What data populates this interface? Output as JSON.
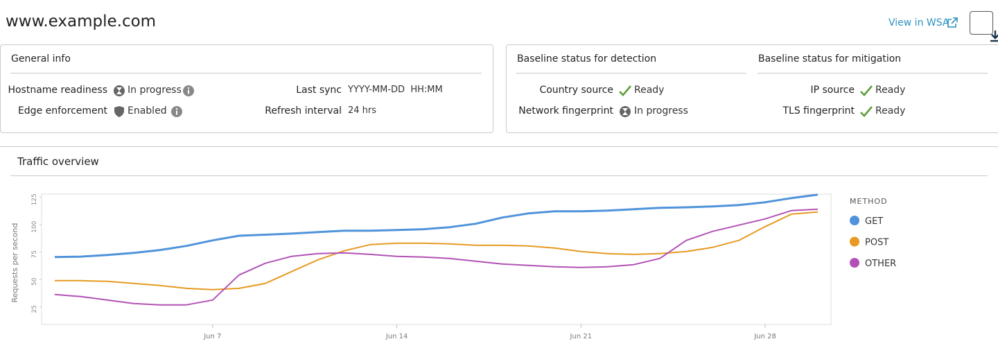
{
  "header": {
    "title": "www.example.com",
    "link": "View in WSA"
  },
  "general_info": {
    "title": "General info",
    "items": [
      {
        "label": "Hostname readiness",
        "status": "In progress"
      },
      {
        "label": "Edge enforcement",
        "status": "Enabled"
      },
      {
        "label": "Last sync",
        "status": "YYYY-MM-DD  HH:MM"
      },
      {
        "label": "Refresh interval",
        "status": "24 hrs"
      }
    ]
  },
  "detection": {
    "title": "Baseline status for detection",
    "items": [
      {
        "label": "Country source",
        "status": "Ready"
      },
      {
        "label": "Network fingerprint",
        "status": "In progress"
      }
    ]
  },
  "mitigation": {
    "title": "Baseline status for mitigation",
    "items": [
      {
        "label": "IP source",
        "status": "Ready"
      },
      {
        "label": "TLS fingerprint",
        "status": "Ready"
      }
    ]
  },
  "chart_data": {
    "type": "line",
    "title": "Traffic overview",
    "y_label": "Requests per second",
    "legend_title": "METHOD",
    "legend_position": "right",
    "x": [
      1,
      2,
      3,
      4,
      5,
      6,
      7,
      8,
      9,
      10,
      11,
      12,
      13,
      14,
      15,
      16,
      17,
      18,
      19,
      20,
      21,
      22,
      23,
      24,
      25,
      26,
      27,
      28,
      29,
      30
    ],
    "xlim": [
      0.5,
      30.5
    ],
    "xticks": [
      {
        "value": 7,
        "label": "Jun 7"
      },
      {
        "value": 14,
        "label": "Jun 14"
      },
      {
        "value": 21,
        "label": "Jun 21"
      },
      {
        "value": 28,
        "label": "Jun 28"
      }
    ],
    "ylim": [
      9,
      128
    ],
    "yticks": [
      25,
      50,
      75,
      100,
      125
    ],
    "series": [
      {
        "name": "GET",
        "color": "#4f93da",
        "values": [
          70.5,
          71,
          72.5,
          74.4,
          77,
          80.7,
          85.8,
          90,
          91,
          92,
          93.4,
          94.6,
          94.6,
          95.3,
          96,
          97.8,
          101,
          106.6,
          110.4,
          112.3,
          112.3,
          113,
          114.2,
          115.5,
          116,
          116.8,
          118,
          120.6,
          124.4,
          127.5
        ]
      },
      {
        "name": "POST",
        "color": "#e69a22",
        "values": [
          49,
          49,
          48.4,
          46.5,
          44.6,
          42,
          40.8,
          42,
          46.5,
          57.3,
          68,
          76.3,
          82,
          83.2,
          83.2,
          82.6,
          81.3,
          81.3,
          80.7,
          78.8,
          75.6,
          73.7,
          73,
          73.7,
          75.6,
          79.4,
          85.8,
          98.4,
          109.8,
          111.7
        ]
      },
      {
        "name": "OTHER",
        "color": "#b251b5",
        "values": [
          36.4,
          34.5,
          31.3,
          28.2,
          26.9,
          26.9,
          31.3,
          54.1,
          64.9,
          71.2,
          73.7,
          74.4,
          73,
          71.2,
          70.6,
          69.3,
          66.8,
          64.2,
          63,
          61.7,
          61.1,
          61.7,
          63.6,
          69.3,
          85.8,
          94,
          99.7,
          105.4,
          113,
          114.2
        ]
      }
    ]
  }
}
